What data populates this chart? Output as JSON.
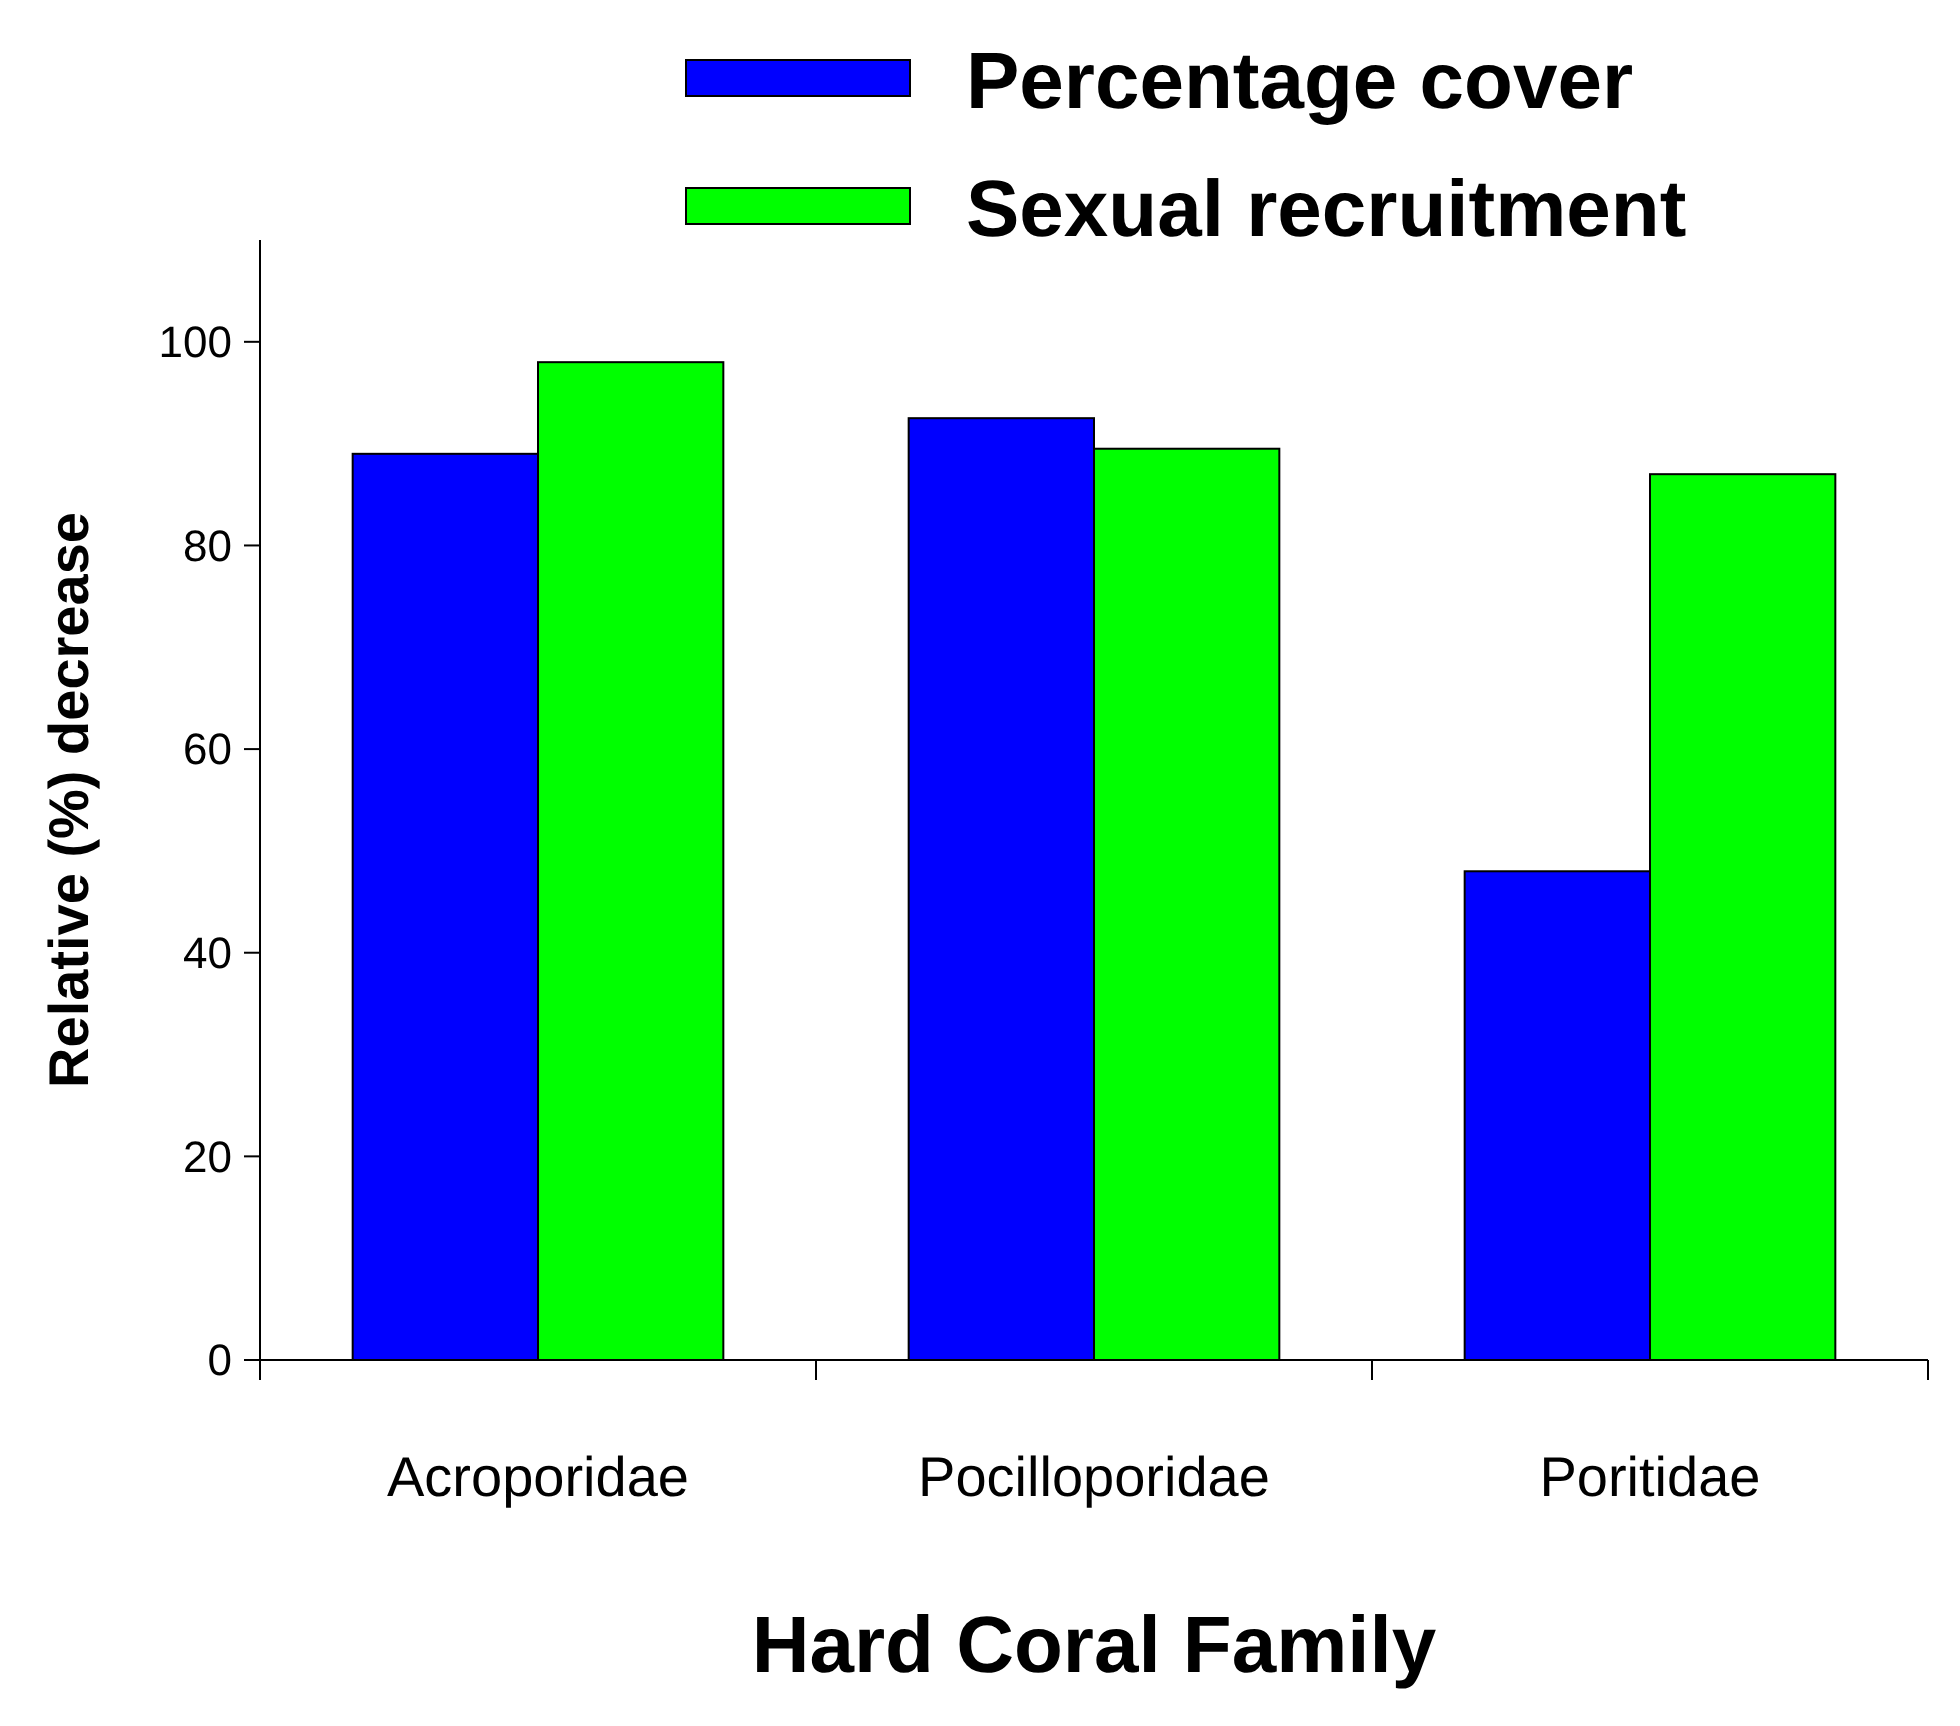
{
  "chart_data": {
    "type": "bar",
    "xlabel": "Hard Coral Family",
    "ylabel": "Relative (%) decrease",
    "categories": [
      "Acroporidae",
      "Pocilloporidae",
      "Poritidae"
    ],
    "series": [
      {
        "name": "Percentage cover",
        "color": "#0000ff",
        "values": [
          89,
          92.5,
          48
        ]
      },
      {
        "name": "Sexual recruitment",
        "color": "#00ff00",
        "values": [
          98,
          89.5,
          87
        ]
      }
    ],
    "ylim": [
      0,
      110
    ],
    "yticks": [
      0,
      20,
      40,
      60,
      80,
      100
    ],
    "grid": false,
    "legend": "top"
  }
}
